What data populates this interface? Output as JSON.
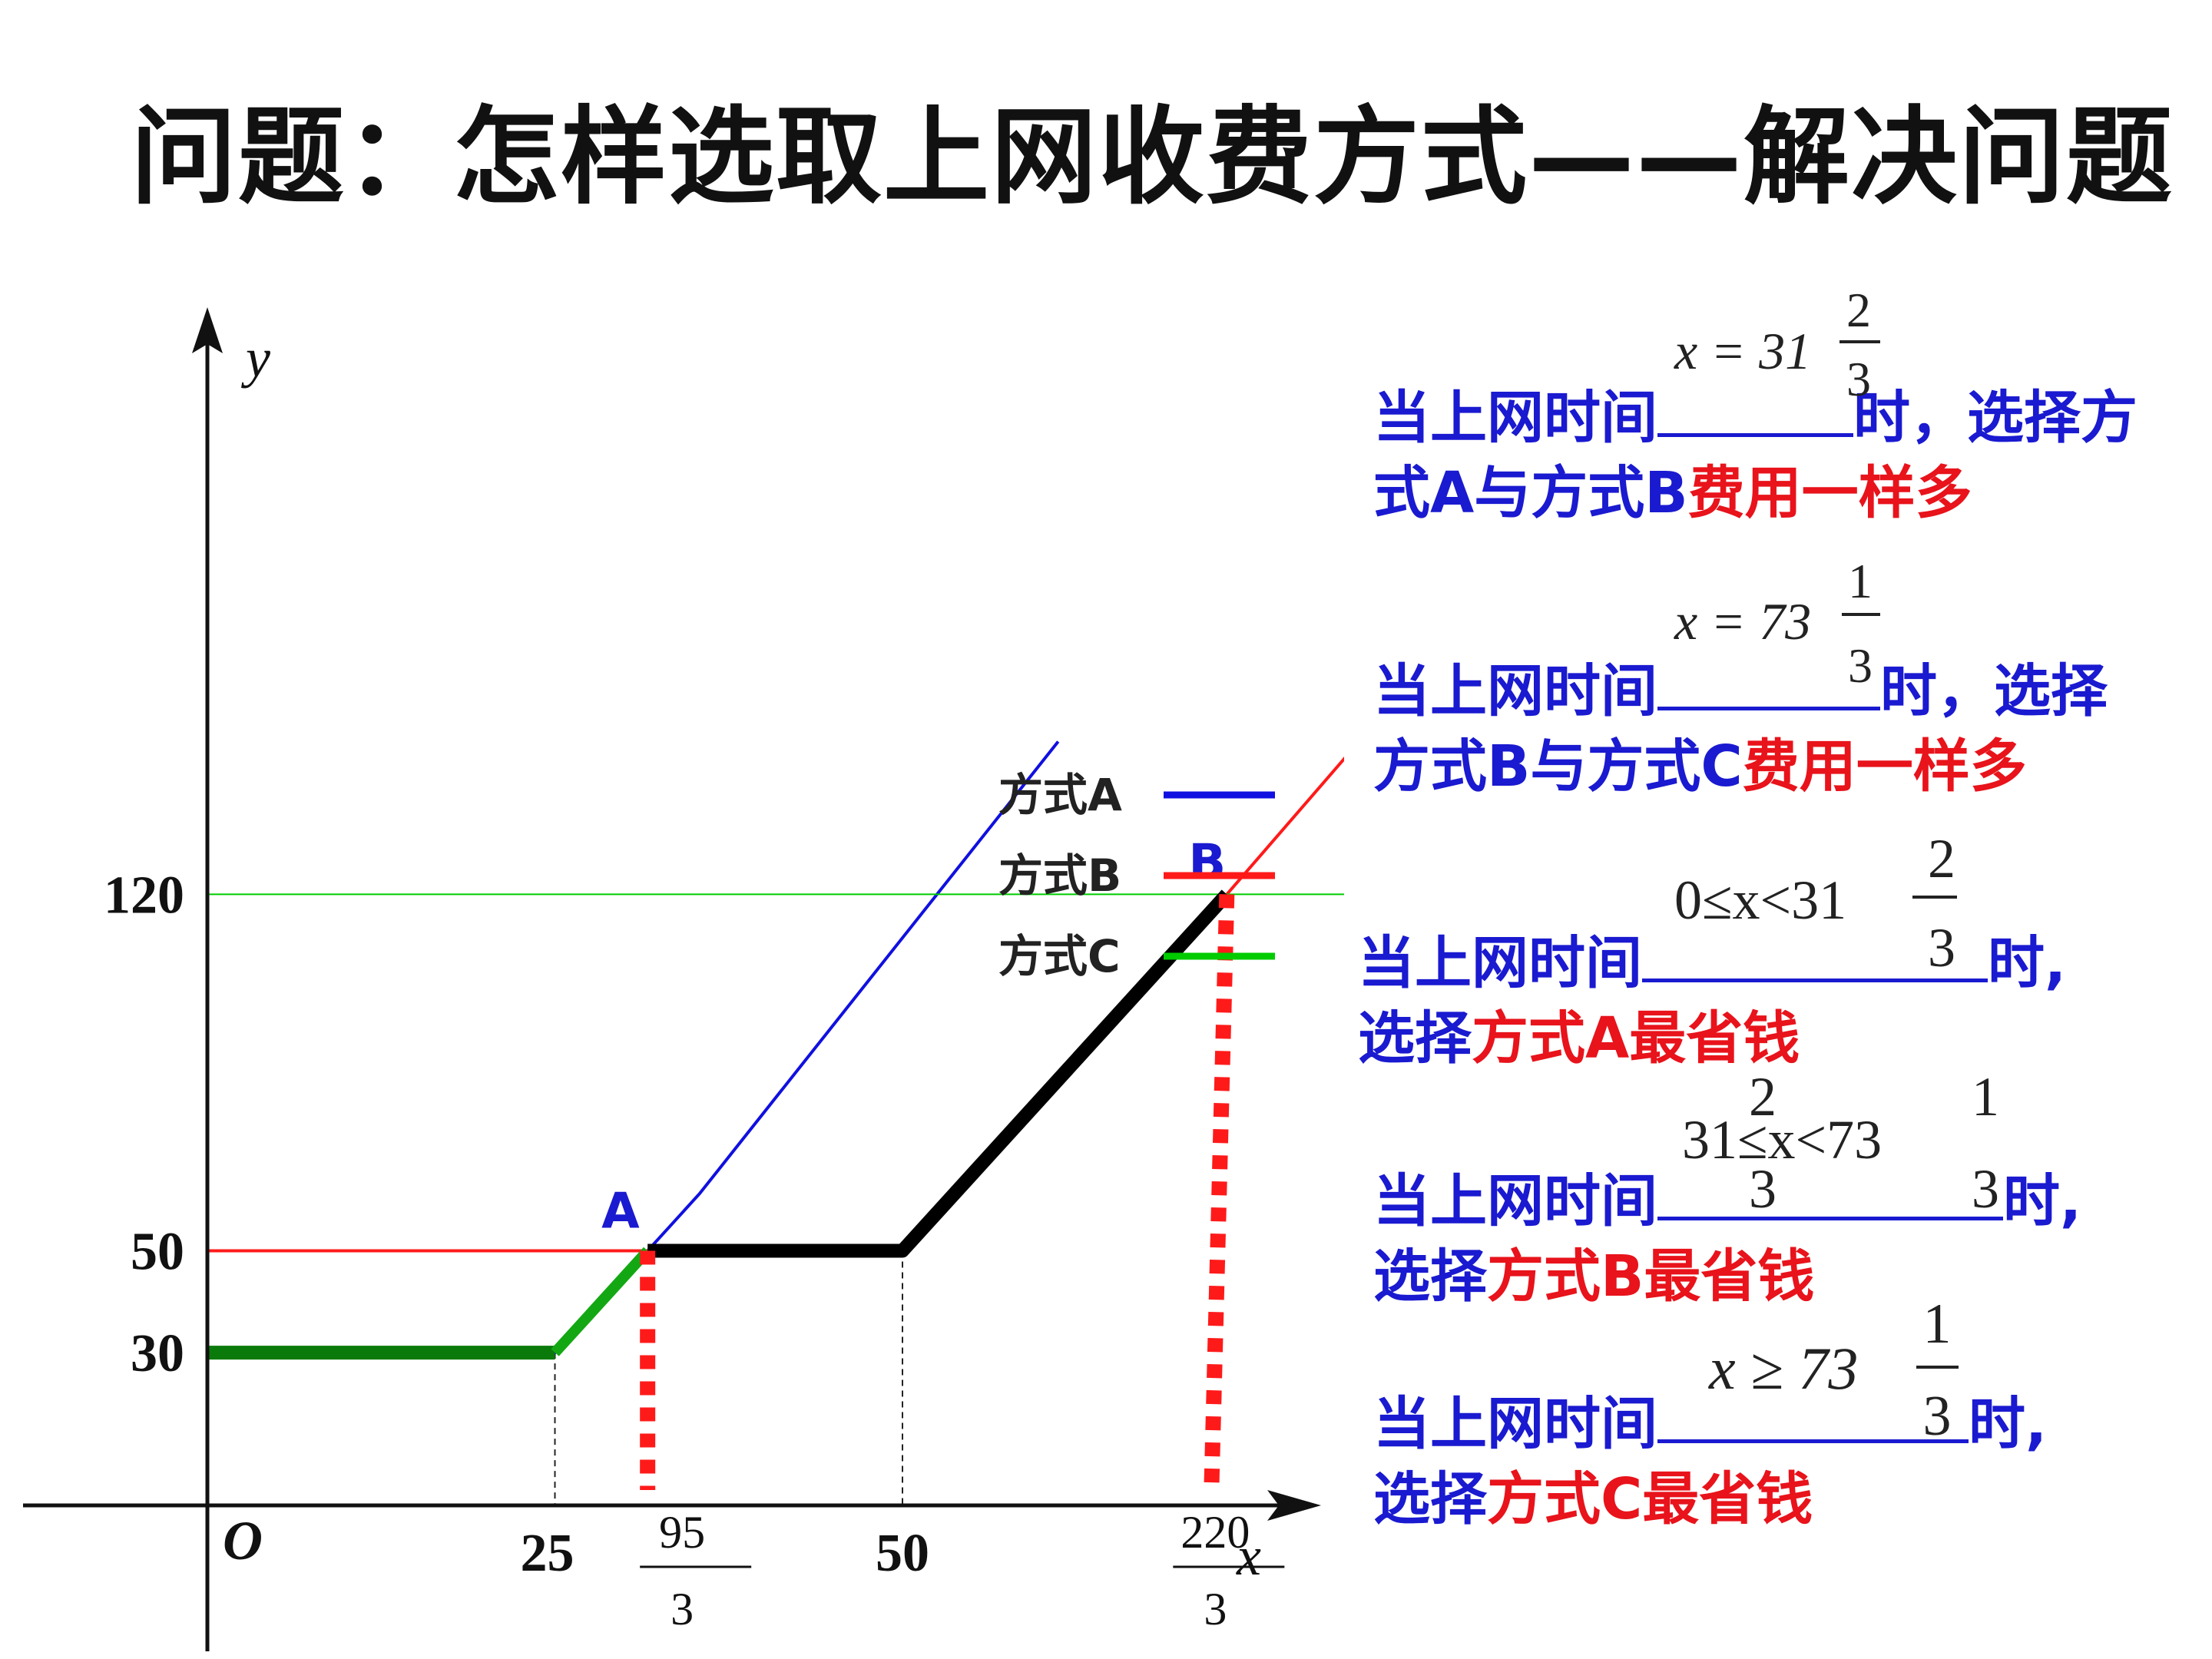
{
  "title": "问题：怎样选取上网收费方式——解决问题",
  "colors": {
    "plan_a": "#1010e0",
    "plan_b": "#ff1a1a",
    "plan_c": "#00cc00",
    "question": "#1a1ad0",
    "emphasis": "#e8131b",
    "best": "#000000",
    "c_segment": "#0a7a0a"
  },
  "chart_data": {
    "type": "line",
    "xlabel": "x",
    "ylabel": "y",
    "origin_label": "O",
    "xlim": [
      0,
      85
    ],
    "ylim": [
      0,
      150
    ],
    "x_ticks": [
      {
        "value": 25,
        "label": "25"
      },
      {
        "value": 31.667,
        "label_num": "95",
        "label_den": "3"
      },
      {
        "value": 50,
        "label": "50"
      },
      {
        "value": 73.333,
        "label_num": "220",
        "label_den": "3"
      }
    ],
    "y_ticks": [
      {
        "value": 30,
        "label": "30"
      },
      {
        "value": 50,
        "label": "50"
      },
      {
        "value": 120,
        "label": "120"
      }
    ],
    "series": [
      {
        "name": "方式A",
        "key": "plan_a",
        "points": [
          [
            0,
            30
          ],
          [
            25,
            30
          ],
          [
            35.4,
            61.2
          ],
          [
            61.2,
            150
          ]
        ]
      },
      {
        "name": "方式B",
        "key": "plan_b",
        "points": [
          [
            0,
            50
          ],
          [
            50,
            50
          ],
          [
            73.333,
            120
          ],
          [
            82.85,
            150
          ]
        ]
      },
      {
        "name": "方式C",
        "key": "plan_c",
        "points": [
          [
            0,
            120
          ],
          [
            85,
            120
          ]
        ]
      }
    ],
    "min_cost": [
      [
        0,
        30
      ],
      [
        25,
        30
      ],
      [
        31.667,
        50
      ],
      [
        50,
        50
      ],
      [
        73.333,
        120
      ]
    ],
    "points": [
      {
        "label": "A",
        "x": 31.667,
        "y": 50
      },
      {
        "label": "B",
        "x": 73.333,
        "y": 120
      }
    ],
    "legend_position": "right"
  },
  "questions": [
    {
      "line1": "当上网时间",
      "line1_tail": "时，选择方",
      "line2": "式A与方式B",
      "line2_red": "费用一样多",
      "answer": "x = 31",
      "ans_num": "2",
      "ans_den": "3"
    },
    {
      "line1": "当上网时间",
      "line1_tail": "时，选择",
      "line2": "方式B与方式C",
      "line2_red": "费用一样多",
      "answer": "x = 73",
      "ans_num": "1",
      "ans_den": "3"
    },
    {
      "line1": "当上网时间",
      "line1_tail": "时,",
      "line2": "选择",
      "line2_red": "方式A最省钱",
      "answer": "0≤x<31",
      "ans_num": "2",
      "ans_den": "3"
    },
    {
      "line1": "当上网时间",
      "line1_tail": "时,",
      "line2": "选择",
      "line2_red": "方式B最省钱",
      "answer": "31≤x<73",
      "ans_num": "2",
      "ans_den": "3",
      "ans_num2": "1",
      "ans_den2": "3"
    },
    {
      "line1": "当上网时间",
      "line1_tail": "时,",
      "line2": "选择",
      "line2_red": "方式C最省钱",
      "answer": "x ≥ 73",
      "ans_num": "1",
      "ans_den": "3"
    }
  ]
}
